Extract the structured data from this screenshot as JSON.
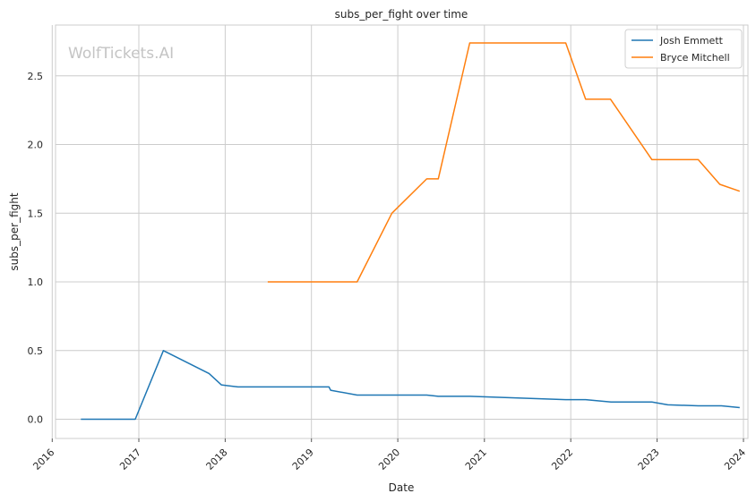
{
  "chart_data": {
    "type": "line",
    "title": "subs_per_fight over time",
    "xlabel": "Date",
    "ylabel": "subs_per_fight",
    "watermark": "WolfTickets.AI",
    "x_type": "date",
    "xlim": [
      "2016-01-15",
      "2024-01-20"
    ],
    "ylim": [
      -0.14,
      2.87
    ],
    "x_ticks": [
      "2016-01-01",
      "2017-01-01",
      "2018-01-01",
      "2019-01-01",
      "2020-01-01",
      "2021-01-01",
      "2022-01-01",
      "2023-01-01",
      "2024-01-01"
    ],
    "x_tick_labels": [
      "2016",
      "2017",
      "2018",
      "2019",
      "2020",
      "2021",
      "2022",
      "2023",
      "2024"
    ],
    "y_ticks": [
      0.0,
      0.5,
      1.0,
      1.5,
      2.0,
      2.5
    ],
    "y_tick_labels": [
      "0.0",
      "0.5",
      "1.0",
      "1.5",
      "2.0",
      "2.5"
    ],
    "grid": true,
    "legend_position": "top-right",
    "series": [
      {
        "name": "Josh Emmett",
        "color": "#1f77b4",
        "points": [
          [
            "2016-05-01",
            0.0
          ],
          [
            "2016-12-17",
            0.0
          ],
          [
            "2017-04-15",
            0.5
          ],
          [
            "2017-10-25",
            0.333
          ],
          [
            "2017-12-16",
            0.25
          ],
          [
            "2018-02-24",
            0.235
          ],
          [
            "2019-03-16",
            0.235
          ],
          [
            "2019-03-23",
            0.211
          ],
          [
            "2019-07-13",
            0.176
          ],
          [
            "2020-05-02",
            0.176
          ],
          [
            "2020-06-20",
            0.167
          ],
          [
            "2020-11-01",
            0.167
          ],
          [
            "2021-12-11",
            0.143
          ],
          [
            "2022-03-05",
            0.143
          ],
          [
            "2022-06-20",
            0.125
          ],
          [
            "2022-12-10",
            0.125
          ],
          [
            "2023-02-15",
            0.105
          ],
          [
            "2023-06-24",
            0.098
          ],
          [
            "2023-09-30",
            0.098
          ],
          [
            "2023-12-16",
            0.085
          ]
        ]
      },
      {
        "name": "Bryce Mitchell",
        "color": "#ff7f0e",
        "points": [
          [
            "2018-06-30",
            1.0
          ],
          [
            "2019-07-13",
            1.0
          ],
          [
            "2019-12-07",
            1.5
          ],
          [
            "2020-05-02",
            1.75
          ],
          [
            "2020-06-20",
            1.75
          ],
          [
            "2020-10-31",
            2.74
          ],
          [
            "2021-12-11",
            2.74
          ],
          [
            "2022-03-05",
            2.33
          ],
          [
            "2022-06-18",
            2.33
          ],
          [
            "2022-12-10",
            1.89
          ],
          [
            "2023-06-24",
            1.89
          ],
          [
            "2023-09-23",
            1.71
          ],
          [
            "2023-12-16",
            1.66
          ]
        ]
      }
    ]
  }
}
